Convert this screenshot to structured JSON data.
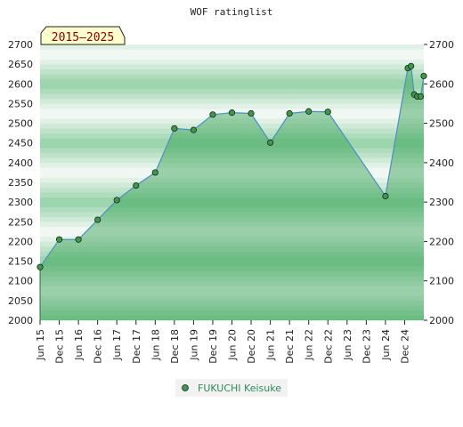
{
  "chart_data": {
    "type": "area",
    "title": "WOF ratinglist",
    "period_badge": "2015–2025",
    "xlabel": "",
    "ylabel": "",
    "ylim": [
      2000,
      2700
    ],
    "y_ticks": [
      2000,
      2050,
      2100,
      2150,
      2200,
      2250,
      2300,
      2350,
      2400,
      2450,
      2500,
      2550,
      2600,
      2650,
      2700
    ],
    "y_ticks_right": [
      2000,
      2100,
      2200,
      2300,
      2400,
      2500,
      2600,
      2700
    ],
    "x_ticks": [
      "Jun 15",
      "Dec 15",
      "Jun 16",
      "Dec 16",
      "Jun 17",
      "Dec 17",
      "Jun 18",
      "Dec 18",
      "Jun 19",
      "Dec 19",
      "Jun 20",
      "Dec 20",
      "Jun 21",
      "Dec 21",
      "Jun 22",
      "Dec 22",
      "Jun 23",
      "Dec 23",
      "Jun 24",
      "Dec 24"
    ],
    "grid": true,
    "legend_position": "bottom-center",
    "series": [
      {
        "name": "FUKUCHI Keisuke",
        "color": "#4a90c2",
        "marker_color": "#3a9a4a",
        "points": [
          {
            "x": "2015-06",
            "y": 2135
          },
          {
            "x": "2015-12",
            "y": 2205
          },
          {
            "x": "2016-06",
            "y": 2205
          },
          {
            "x": "2016-12",
            "y": 2255
          },
          {
            "x": "2017-06",
            "y": 2305
          },
          {
            "x": "2017-12",
            "y": 2342
          },
          {
            "x": "2018-06",
            "y": 2375
          },
          {
            "x": "2018-12",
            "y": 2487
          },
          {
            "x": "2019-06",
            "y": 2483
          },
          {
            "x": "2019-12",
            "y": 2522
          },
          {
            "x": "2020-06",
            "y": 2527
          },
          {
            "x": "2020-12",
            "y": 2525
          },
          {
            "x": "2021-06",
            "y": 2451
          },
          {
            "x": "2021-12",
            "y": 2525
          },
          {
            "x": "2022-06",
            "y": 2530
          },
          {
            "x": "2022-12",
            "y": 2529
          },
          {
            "x": "2024-06",
            "y": 2315
          },
          {
            "x": "2025-01",
            "y": 2640
          },
          {
            "x": "2025-02",
            "y": 2645
          },
          {
            "x": "2025-03",
            "y": 2573
          },
          {
            "x": "2025-04",
            "y": 2568
          },
          {
            "x": "2025-05",
            "y": 2568
          },
          {
            "x": "2025-06",
            "y": 2620
          }
        ]
      }
    ]
  }
}
